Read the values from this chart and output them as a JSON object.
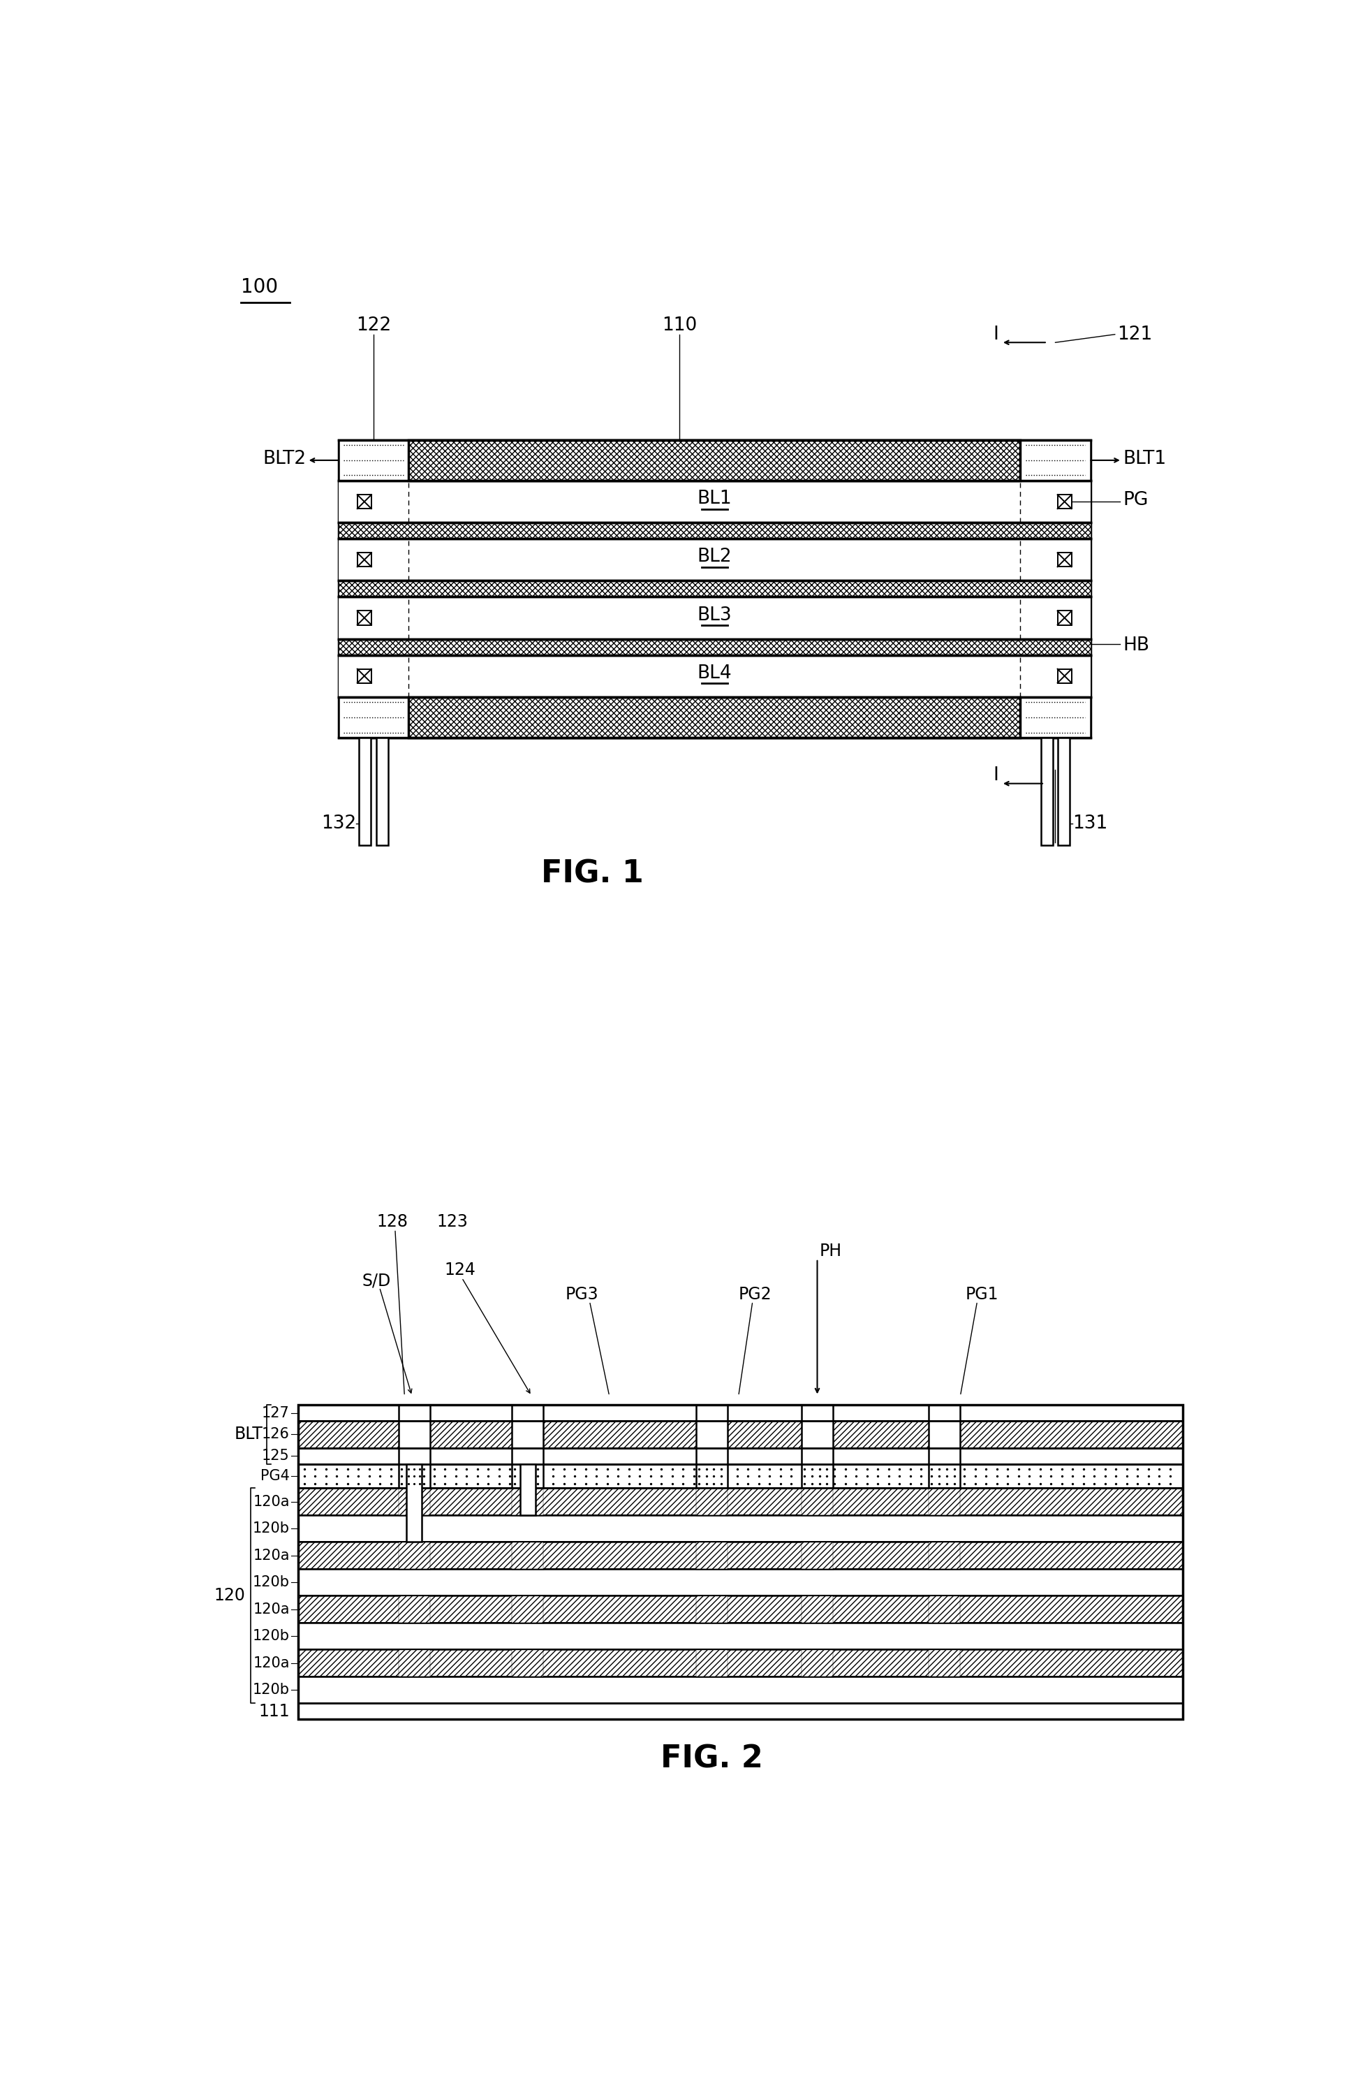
{
  "fig_width": 19.55,
  "fig_height": 29.69,
  "bg_color": "#ffffff",
  "fig1": {
    "title": "FIG. 1",
    "label_100": "100",
    "label_110": "110",
    "label_121": "121",
    "label_122": "122",
    "label_131": "131",
    "label_132": "132",
    "label_BLT1": "BLT1",
    "label_BLT2": "BLT2",
    "label_PG": "PG",
    "label_HB": "HB",
    "label_BL1": "BL1",
    "label_BL2": "BL2",
    "label_BL3": "BL3",
    "label_BL4": "BL4",
    "label_I": "I"
  },
  "fig2": {
    "title": "FIG. 2",
    "label_111": "111",
    "label_120": "120",
    "label_120a": "120a",
    "label_120b": "120b",
    "label_123": "123",
    "label_124": "124",
    "label_125": "125",
    "label_126": "126",
    "label_127": "127",
    "label_128": "128",
    "label_BLT": "BLT",
    "label_PG1": "PG1",
    "label_PG2": "PG2",
    "label_PG3": "PG3",
    "label_PG4": "PG4",
    "label_PH": "PH",
    "label_SD": "S/D"
  }
}
